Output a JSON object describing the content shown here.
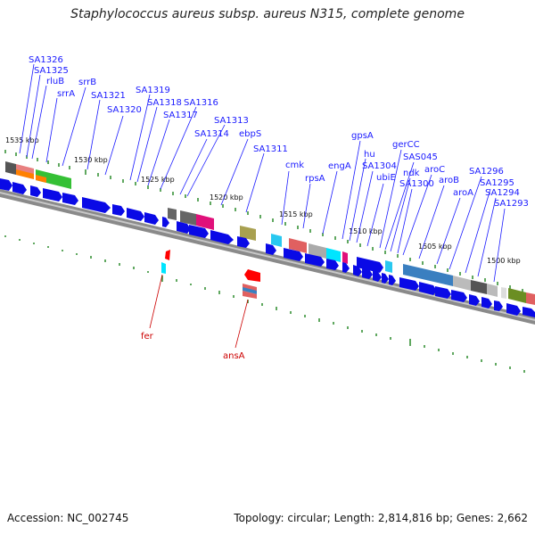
{
  "title": "Staphylococcus aureus subsp. aureus N315, complete genome",
  "footer": {
    "accession": "Accession: NC_002745",
    "topology": "Topology: circular; Length: 2,814,816 bp; Genes: 2,662"
  },
  "colors": {
    "forward_gene": "#0a0ae6",
    "reverse_gene": "#ff0000",
    "label_blue": "#1a1aff",
    "label_red": "#cc0000",
    "backbone": "#888888",
    "tick_green": "#2a8a2a"
  },
  "kbp_labels": [
    "1535 kbp",
    "1530 kbp",
    "1525 kbp",
    "1520 kbp",
    "1515 kbp",
    "1510 kbp",
    "1505 kbp",
    "1500 kbp"
  ],
  "gene_labels": [
    {
      "text": "SA1326"
    },
    {
      "text": "SA1325"
    },
    {
      "text": "rluB"
    },
    {
      "text": "srrA"
    },
    {
      "text": "srrB"
    },
    {
      "text": "SA1321"
    },
    {
      "text": "SA1320"
    },
    {
      "text": "SA1319"
    },
    {
      "text": "SA1318"
    },
    {
      "text": "SA1317"
    },
    {
      "text": "SA1316"
    },
    {
      "text": "SA1314"
    },
    {
      "text": "SA1313"
    },
    {
      "text": "ebpS"
    },
    {
      "text": "SA1311"
    },
    {
      "text": "cmk"
    },
    {
      "text": "rpsA"
    },
    {
      "text": "engA"
    },
    {
      "text": "gpsA"
    },
    {
      "text": "hu"
    },
    {
      "text": "SA1304"
    },
    {
      "text": "ubiE"
    },
    {
      "text": "gerCC"
    },
    {
      "text": "SAS045"
    },
    {
      "text": "ndk"
    },
    {
      "text": "SA1300"
    },
    {
      "text": "aroC"
    },
    {
      "text": "aroB"
    },
    {
      "text": "aroA"
    },
    {
      "text": "SA1296"
    },
    {
      "text": "SA1295"
    },
    {
      "text": "SA1294"
    },
    {
      "text": "SA1293"
    }
  ],
  "reverse_labels": [
    {
      "text": "fer"
    },
    {
      "text": "ansA"
    }
  ]
}
